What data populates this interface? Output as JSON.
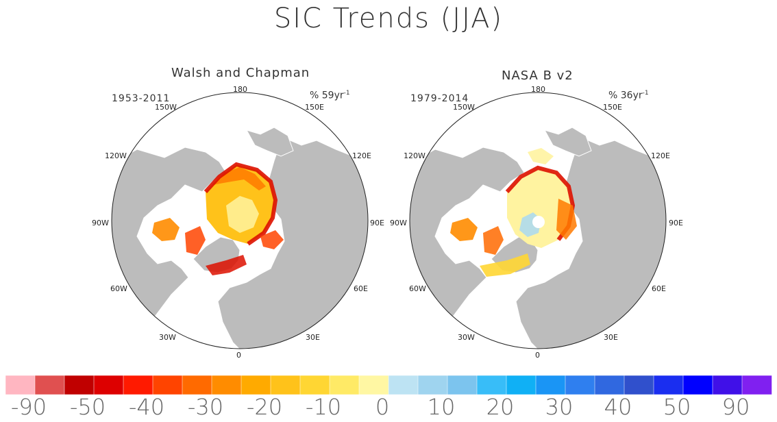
{
  "title": "SIC Trends (JJA)",
  "panels": [
    {
      "title": "Walsh and Chapman",
      "period": "1953-2011",
      "units": "% 59yr",
      "units_exp": "-1"
    },
    {
      "title": "NASA B v2",
      "period": "1979-2014",
      "units": "% 36yr",
      "units_exp": "-1"
    }
  ],
  "longitude_labels": {
    "top": "180",
    "top_left": "150W",
    "top_right": "150E",
    "upper_left": "120W",
    "upper_right": "120E",
    "left": "90W",
    "right": "90E",
    "lower_left": "60W",
    "lower_right": "60E",
    "bottom_left": "30W",
    "bottom_right": "30E",
    "bottom": "0"
  },
  "colorbar": {
    "colors": [
      "#ffb6c1",
      "#e05050",
      "#c00000",
      "#dd0000",
      "#ff1a00",
      "#ff4400",
      "#ff6a00",
      "#ff8c00",
      "#ffaa00",
      "#ffc21a",
      "#ffd633",
      "#ffea66",
      "#fff7a3",
      "#bde3f3",
      "#9fd4ef",
      "#7cc4ee",
      "#38bdf8",
      "#10b0f5",
      "#1a95f5",
      "#2f7fef",
      "#3068e0",
      "#3050cc",
      "#1a2ef0",
      "#0000ff",
      "#4010e8",
      "#8020f0"
    ],
    "labels": [
      "-90",
      "-50",
      "-40",
      "-30",
      "-20",
      "-10",
      "0",
      "10",
      "20",
      "30",
      "40",
      "50",
      "90"
    ]
  },
  "map_colors": {
    "land": "#bcbcbc",
    "ocean": "#ffffff",
    "decline_strong": "#dd1100",
    "decline_moderate": "#ff7a00",
    "decline_weak": "#ffc21a",
    "decline_slight": "#fff3a0",
    "increase": "#a9d8f2"
  }
}
